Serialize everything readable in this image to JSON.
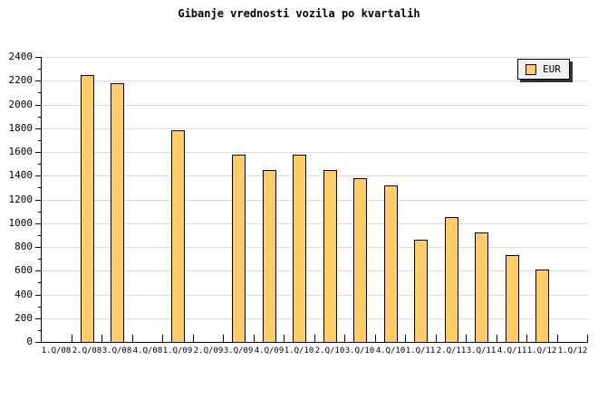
{
  "title": "Gibanje vrednosti vozila po kvartalih",
  "legend": {
    "label": "EUR",
    "position": "top-right",
    "swatch_color": "#FFCC66"
  },
  "colors": {
    "bar_fill": "#FFCC66",
    "bar_border": "#000000",
    "grid": "#DCDCDC",
    "axis": "#000000",
    "legend_bg": "#F0F0F0",
    "legend_shadow": "#333333",
    "background": "#FFFFFF"
  },
  "chart_data": {
    "type": "bar",
    "title": "Gibanje vrednosti vozila po kvartalih",
    "series_name": "EUR",
    "categories": [
      "1.Q/08",
      "2.Q/08",
      "3.Q/08",
      "4.Q/08",
      "1.Q/09",
      "2.Q/09",
      "3.Q/09",
      "4.Q/09",
      "1.Q/10",
      "2.Q/10",
      "3.Q/10",
      "4.Q/10",
      "1.Q/11",
      "2.Q/11",
      "3.Q/11",
      "4.Q/11",
      "1.Q/12",
      "1.Q/12"
    ],
    "values": [
      null,
      2250,
      2180,
      null,
      1780,
      null,
      1580,
      1450,
      1580,
      1450,
      1380,
      1320,
      860,
      1050,
      925,
      730,
      610,
      null
    ],
    "xlabel": "",
    "ylabel": "",
    "ylim": [
      0,
      2400
    ],
    "y_major_step": 200,
    "y_minor_step": 100,
    "grid": "horizontal-major",
    "legend_position": "top-right"
  }
}
